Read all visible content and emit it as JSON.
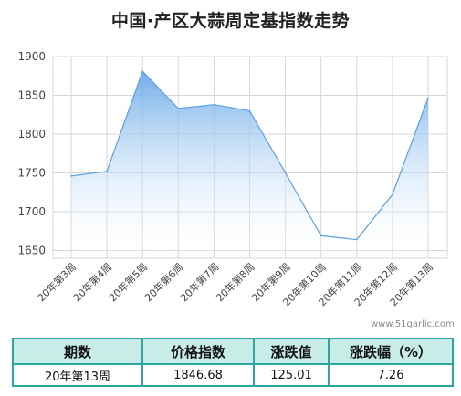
{
  "title": "中国·产区大蒜周定基指数走势",
  "watermark": "www.51garlic.com",
  "colors": {
    "line": "#5b9ee4",
    "fill_top": "#6aa9e8",
    "fill_bottom": "#ffffff",
    "grid": "#d7d7d7",
    "table_border": "#2aa7a0",
    "table_header": "#c8ede9"
  },
  "chart_data": {
    "type": "area",
    "title": "中国·产区大蒜周定基指数走势",
    "categories": [
      "20年第3周",
      "20年第4周",
      "20年第5周",
      "20年第6周",
      "20年第7周",
      "20年第8周",
      "20年第9周",
      "20年第10周",
      "20年第11周",
      "20年第12周",
      "20年第13周"
    ],
    "series": [
      {
        "values": [
          1746,
          1752,
          1881,
          1833,
          1838,
          1830,
          1750,
          1669,
          1664,
          1722,
          1846.68
        ]
      }
    ],
    "yticks": [
      "1900",
      "1850",
      "1800",
      "1750",
      "1700",
      "1650"
    ],
    "ylim": [
      1640,
      1900
    ],
    "grid": true,
    "legend": "none"
  },
  "table": {
    "headers": [
      "期数",
      "价格指数",
      "涨跌值",
      "涨跌幅（%）"
    ],
    "row": [
      "20年第13周",
      "1846.68",
      "125.01",
      "7.26"
    ]
  }
}
